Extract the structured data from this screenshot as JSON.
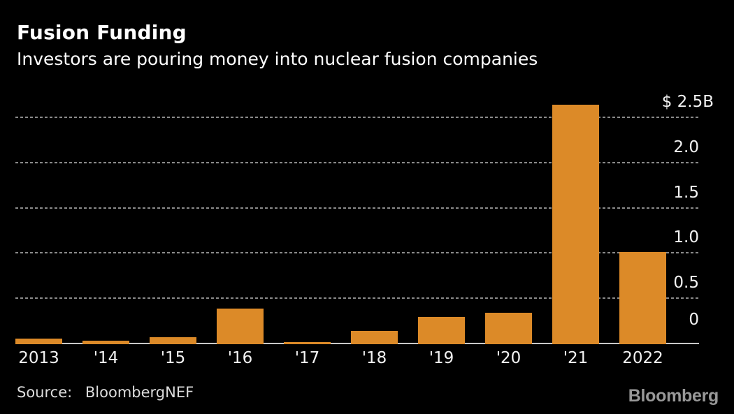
{
  "chart_data": {
    "type": "bar",
    "title": "Fusion Funding",
    "subtitle": "Investors are pouring money into nuclear fusion companies",
    "categories": [
      "2013",
      "'14",
      "'15",
      "'16",
      "'17",
      "'18",
      "'19",
      "'20",
      "'21",
      "2022"
    ],
    "values": [
      0.06,
      0.04,
      0.08,
      0.39,
      0.02,
      0.15,
      0.3,
      0.35,
      2.65,
      1.02
    ],
    "unit": "$B",
    "xlabel": "",
    "ylabel": "",
    "ylim": [
      0,
      2.72
    ],
    "yticks": [
      {
        "value": 0,
        "label": "0"
      },
      {
        "value": 0.5,
        "label": "0.5"
      },
      {
        "value": 1.0,
        "label": "1.0"
      },
      {
        "value": 1.5,
        "label": "1.5"
      },
      {
        "value": 2.0,
        "label": "2.0"
      },
      {
        "value": 2.5,
        "label": "$ 2.5B"
      }
    ],
    "grid": "horizontal-dotted",
    "legend": "none",
    "tick_label_side": "right"
  },
  "footer": {
    "source_label": "Source:",
    "source_value": "BloombergNEF",
    "logo": "Bloomberg"
  },
  "colors": {
    "background": "#000000",
    "bar": "#DC8A28",
    "gridline": "#8A8A8A",
    "baseline": "#C8C8C8",
    "title_text": "#FFFFFF",
    "axis_text": "#F2F2F2",
    "source_text": "#DCDCDC",
    "logo_text": "#989898"
  }
}
